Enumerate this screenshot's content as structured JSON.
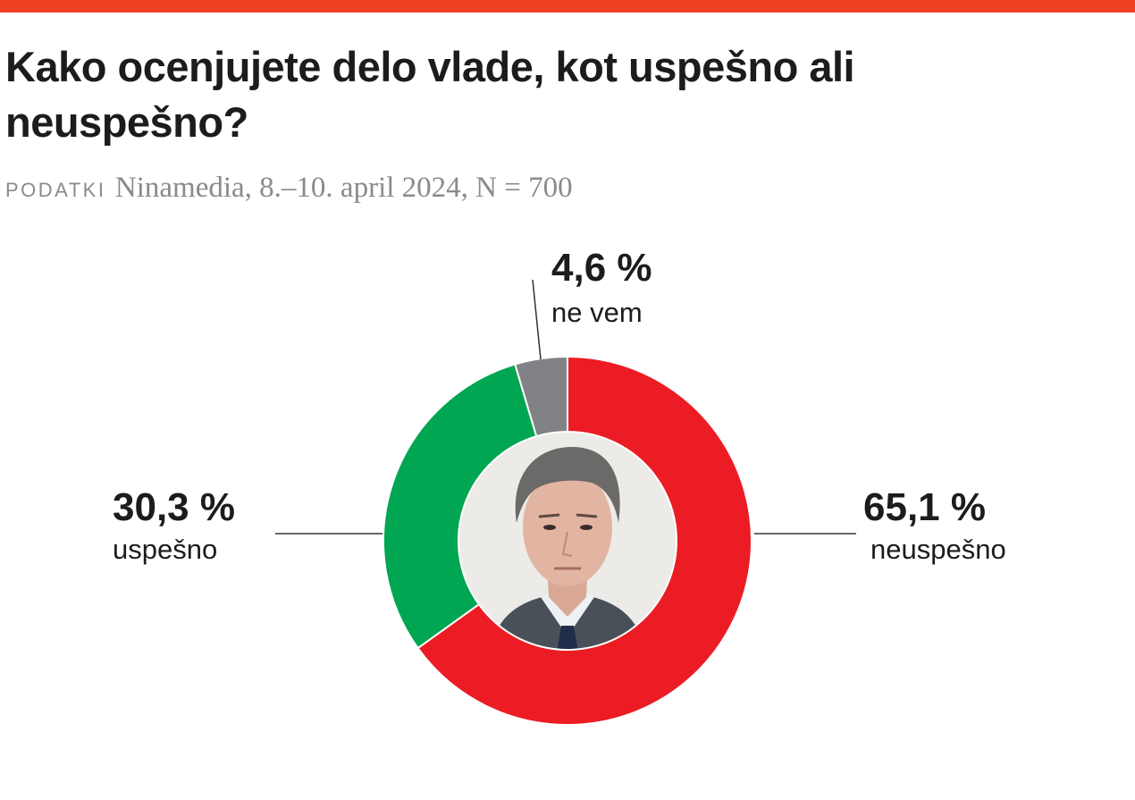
{
  "header": {
    "title": "Kako ocenjujete delo vlade, kot uspešno ali neuspešno?",
    "source_label": "PODATKI",
    "source_text": "Ninamedia, 8.–10. april 2024, N = 700"
  },
  "colors": {
    "accent_bar": "#ef4123",
    "neuspesno": "#ec1c24",
    "uspesno": "#00a651",
    "ne_vem": "#808285"
  },
  "chart_data": {
    "type": "pie",
    "variant": "donut",
    "title": "Kako ocenjujete delo vlade, kot uspešno ali neuspešno?",
    "slices": [
      {
        "label": "neuspešno",
        "value": 65.1,
        "display": "65,1 %",
        "color": "#ec1c24"
      },
      {
        "label": "uspešno",
        "value": 30.3,
        "display": "30,3 %",
        "color": "#00a651"
      },
      {
        "label": "ne vem",
        "value": 4.6,
        "display": "4,6 %",
        "color": "#808285"
      }
    ],
    "start": "top",
    "direction": "clockwise",
    "center_image": "portrait-photo"
  }
}
